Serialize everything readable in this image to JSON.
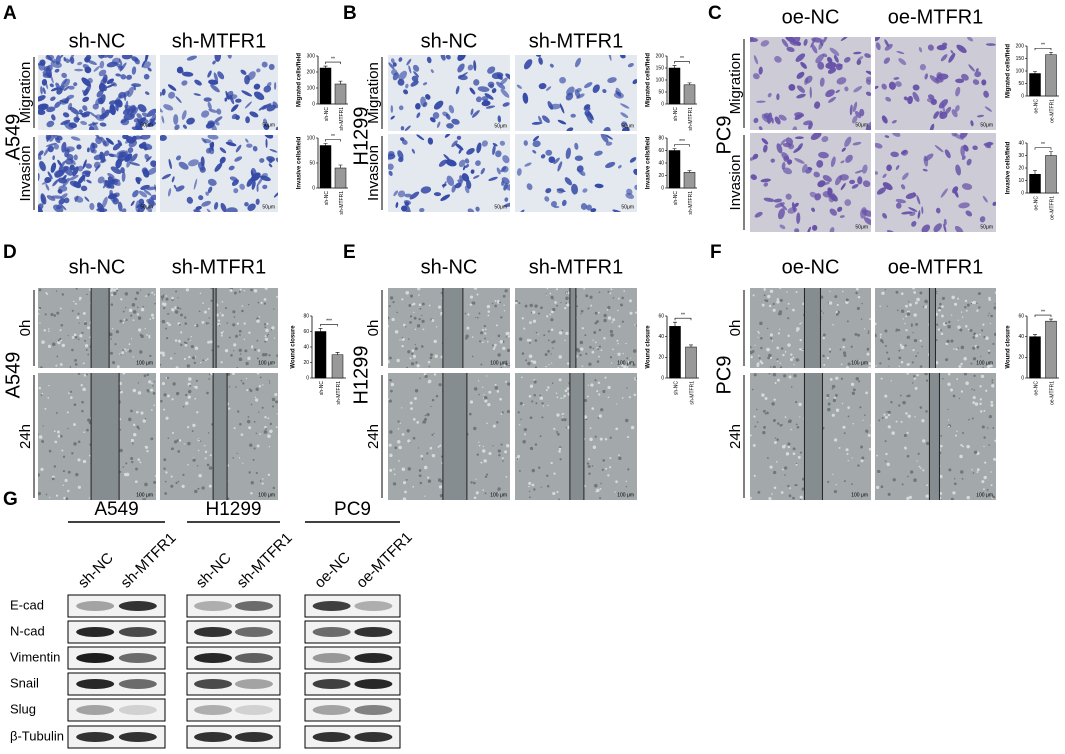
{
  "panels": [
    {
      "letter": "A",
      "cell_line": "A549",
      "columns": [
        "sh-NC",
        "sh-MTFR1"
      ],
      "rows": [
        "Migration",
        "Invasion"
      ],
      "scale_bar": "50μm",
      "charts": [
        {
          "ylabel": "Migrated cells/field",
          "categories": [
            "sh-NC",
            "sh-MTFR1"
          ],
          "values": [
            225,
            125
          ],
          "errors": [
            12,
            18
          ],
          "ylim": [
            0,
            300
          ],
          "yticks": [
            0,
            100,
            200,
            300
          ],
          "significance": "**"
        },
        {
          "ylabel": "Invasive cells/field",
          "categories": [
            "sh-NC",
            "sh-MTFR1"
          ],
          "values": [
            85,
            40
          ],
          "errors": [
            4,
            6
          ],
          "ylim": [
            0,
            100
          ],
          "yticks": [
            0,
            50,
            100
          ],
          "significance": "**"
        }
      ]
    },
    {
      "letter": "B",
      "cell_line": "H1299",
      "columns": [
        "sh-NC",
        "sh-MTFR1"
      ],
      "rows": [
        "Migration",
        "Invasion"
      ],
      "scale_bar": "50μm",
      "charts": [
        {
          "ylabel": "Migrated cells/field",
          "categories": [
            "sh-NC",
            "sh-MTFR1"
          ],
          "values": [
            150,
            80
          ],
          "errors": [
            10,
            8
          ],
          "ylim": [
            0,
            200
          ],
          "yticks": [
            0,
            50,
            100,
            150,
            200
          ],
          "significance": "**"
        },
        {
          "ylabel": "Invasive cells/field",
          "categories": [
            "sh-NC",
            "sh-MTFR1"
          ],
          "values": [
            60,
            25
          ],
          "errors": [
            3,
            3
          ],
          "ylim": [
            0,
            80
          ],
          "yticks": [
            0,
            20,
            40,
            60,
            80
          ],
          "significance": "***"
        }
      ]
    },
    {
      "letter": "C",
      "cell_line": "PC9",
      "columns": [
        "oe-NC",
        "oe-MTFR1"
      ],
      "rows": [
        "Migration",
        "Invasion"
      ],
      "scale_bar": "50μm",
      "charts": [
        {
          "ylabel": "Migrated cells/field",
          "categories": [
            "oe-NC",
            "oe-MTFR1"
          ],
          "values": [
            90,
            165
          ],
          "errors": [
            8,
            10
          ],
          "ylim": [
            0,
            200
          ],
          "yticks": [
            0,
            50,
            100,
            150,
            200
          ],
          "significance": "**"
        },
        {
          "ylabel": "Invasive cells/field",
          "categories": [
            "oe-NC",
            "oe-MTFR1"
          ],
          "values": [
            15,
            30
          ],
          "errors": [
            3,
            3
          ],
          "ylim": [
            0,
            40
          ],
          "yticks": [
            0,
            10,
            20,
            30,
            40
          ],
          "significance": "**"
        }
      ]
    },
    {
      "letter": "D",
      "cell_line": "A549",
      "columns": [
        "sh-NC",
        "sh-MTFR1"
      ],
      "rows": [
        "0h",
        "24h"
      ],
      "scale_bar": "100 μm",
      "charts": [
        {
          "ylabel": "Wound closure",
          "categories": [
            "sh-NC",
            "sh-MTFR1"
          ],
          "values": [
            60,
            30
          ],
          "errors": [
            4,
            3
          ],
          "ylim": [
            0,
            80
          ],
          "yticks": [
            0,
            20,
            40,
            60,
            80
          ],
          "significance": "***"
        }
      ]
    },
    {
      "letter": "E",
      "cell_line": "H1299",
      "columns": [
        "sh-NC",
        "sh-MTFR1"
      ],
      "rows": [
        "0h",
        "24h"
      ],
      "scale_bar": "100 μm",
      "charts": [
        {
          "ylabel": "Wound closure",
          "categories": [
            "sh-NC",
            "sh-MTFR1"
          ],
          "values": [
            50,
            30
          ],
          "errors": [
            4,
            2
          ],
          "ylim": [
            0,
            60
          ],
          "yticks": [
            0,
            20,
            40,
            60
          ],
          "significance": "**"
        }
      ]
    },
    {
      "letter": "F",
      "cell_line": "PC9",
      "columns": [
        "oe-NC",
        "oe-MTFR1"
      ],
      "rows": [
        "0h",
        "24h"
      ],
      "scale_bar": "100 μm",
      "charts": [
        {
          "ylabel": "Wound closure",
          "categories": [
            "oe-NC",
            "oe-MTFR1"
          ],
          "values": [
            40,
            55
          ],
          "errors": [
            2,
            2
          ],
          "ylim": [
            0,
            60
          ],
          "yticks": [
            0,
            20,
            40,
            60
          ],
          "significance": "**"
        }
      ]
    }
  ],
  "western": {
    "letter": "G",
    "groups": [
      {
        "name": "A549",
        "lanes": [
          "sh-NC",
          "sh-MTFR1"
        ]
      },
      {
        "name": "H1299",
        "lanes": [
          "sh-NC",
          "sh-MTFR1"
        ]
      },
      {
        "name": "PC9",
        "lanes": [
          "oe-NC",
          "oe-MTFR1"
        ]
      }
    ],
    "proteins": [
      "E-cad",
      "N-cad",
      "Vimentin",
      "Snail",
      "Slug",
      "β-Tubulin"
    ]
  }
}
